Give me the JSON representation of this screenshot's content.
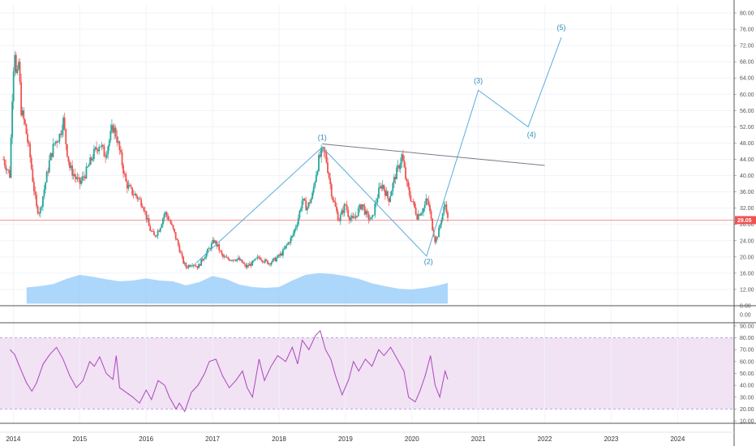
{
  "chart_data": [
    {
      "type": "candlestick",
      "title": "",
      "price_axis": {
        "ticks": [
          8,
          12,
          16,
          20,
          24,
          28,
          32,
          36,
          40,
          44,
          48,
          52,
          56,
          60,
          64,
          68,
          72,
          76,
          80
        ],
        "tick_labels": [
          "8.00",
          "12.00",
          "16.00",
          "20.00",
          "24.00",
          "28.00",
          "32.00",
          "36.00",
          "40.00",
          "44.00",
          "48.00",
          "52.00",
          "56.00",
          "60.00",
          "64.00",
          "68.00",
          "72.00",
          "76.00",
          "80.00"
        ],
        "range": [
          8,
          82
        ]
      },
      "current_price": {
        "value": 29.05,
        "label": "29.05",
        "color": "#ef5350"
      },
      "time_axis": {
        "labels": [
          "2014",
          "2015",
          "2016",
          "2017",
          "2018",
          "2019",
          "2020",
          "2021",
          "2022",
          "2023",
          "2024"
        ],
        "range": [
          2013.8,
          2024.85
        ]
      },
      "colors": {
        "up": "#26a69a",
        "down": "#ef5350",
        "volume": "#90caf9",
        "projection": "#5aaed8",
        "trendline": "#787b86"
      },
      "price_path": [
        [
          2013.85,
          44
        ],
        [
          2013.95,
          40
        ],
        [
          2013.98,
          58
        ],
        [
          2014.0,
          66
        ],
        [
          2014.02,
          72
        ],
        [
          2014.05,
          62
        ],
        [
          2014.08,
          68
        ],
        [
          2014.12,
          56
        ],
        [
          2014.18,
          52
        ],
        [
          2014.25,
          45
        ],
        [
          2014.3,
          38
        ],
        [
          2014.35,
          32
        ],
        [
          2014.4,
          31
        ],
        [
          2014.48,
          38
        ],
        [
          2014.55,
          44
        ],
        [
          2014.62,
          48
        ],
        [
          2014.7,
          50
        ],
        [
          2014.75,
          54
        ],
        [
          2014.8,
          47
        ],
        [
          2014.85,
          42
        ],
        [
          2014.92,
          40
        ],
        [
          2015.0,
          38
        ],
        [
          2015.1,
          41
        ],
        [
          2015.2,
          45
        ],
        [
          2015.3,
          48
        ],
        [
          2015.38,
          45
        ],
        [
          2015.45,
          49
        ],
        [
          2015.5,
          52
        ],
        [
          2015.55,
          50
        ],
        [
          2015.6,
          46
        ],
        [
          2015.65,
          42
        ],
        [
          2015.7,
          38
        ],
        [
          2015.78,
          36
        ],
        [
          2015.85,
          35
        ],
        [
          2015.95,
          33
        ],
        [
          2016.0,
          30
        ],
        [
          2016.05,
          27
        ],
        [
          2016.12,
          25
        ],
        [
          2016.2,
          27
        ],
        [
          2016.28,
          31
        ],
        [
          2016.35,
          29
        ],
        [
          2016.42,
          26
        ],
        [
          2016.5,
          22
        ],
        [
          2016.55,
          19
        ],
        [
          2016.6,
          17.5
        ],
        [
          2016.7,
          18.5
        ],
        [
          2016.78,
          17.5
        ],
        [
          2016.85,
          19.5
        ],
        [
          2016.95,
          22
        ],
        [
          2017.02,
          24
        ],
        [
          2017.08,
          22.5
        ],
        [
          2017.15,
          20
        ],
        [
          2017.22,
          19.5
        ],
        [
          2017.3,
          19.5
        ],
        [
          2017.38,
          19.5
        ],
        [
          2017.45,
          18.5
        ],
        [
          2017.5,
          17.5
        ],
        [
          2017.6,
          18.5
        ],
        [
          2017.7,
          20
        ],
        [
          2017.78,
          19
        ],
        [
          2017.85,
          18.5
        ],
        [
          2017.95,
          19.5
        ],
        [
          2018.05,
          21
        ],
        [
          2018.12,
          23
        ],
        [
          2018.2,
          25
        ],
        [
          2018.28,
          29
        ],
        [
          2018.35,
          34
        ],
        [
          2018.42,
          32
        ],
        [
          2018.5,
          35
        ],
        [
          2018.55,
          40
        ],
        [
          2018.6,
          44
        ],
        [
          2018.65,
          46
        ],
        [
          2018.7,
          45
        ],
        [
          2018.75,
          40
        ],
        [
          2018.8,
          35
        ],
        [
          2018.85,
          32
        ],
        [
          2018.9,
          29
        ],
        [
          2018.95,
          31
        ],
        [
          2019.0,
          33
        ],
        [
          2019.05,
          30
        ],
        [
          2019.12,
          29
        ],
        [
          2019.18,
          31
        ],
        [
          2019.25,
          33
        ],
        [
          2019.32,
          30
        ],
        [
          2019.4,
          29
        ],
        [
          2019.45,
          33
        ],
        [
          2019.5,
          36
        ],
        [
          2019.55,
          38
        ],
        [
          2019.6,
          36
        ],
        [
          2019.65,
          34
        ],
        [
          2019.7,
          37
        ],
        [
          2019.75,
          40
        ],
        [
          2019.8,
          42
        ],
        [
          2019.85,
          45
        ],
        [
          2019.88,
          42
        ],
        [
          2019.92,
          38
        ],
        [
          2019.97,
          35
        ],
        [
          2020.02,
          33
        ],
        [
          2020.08,
          30
        ],
        [
          2020.12,
          31
        ],
        [
          2020.18,
          32
        ],
        [
          2020.22,
          34
        ],
        [
          2020.25,
          33
        ],
        [
          2020.3,
          28
        ],
        [
          2020.35,
          24
        ],
        [
          2020.4,
          26
        ],
        [
          2020.45,
          30
        ],
        [
          2020.5,
          33
        ],
        [
          2020.52,
          32
        ],
        [
          2020.54,
          29.05
        ]
      ],
      "wave_labels": [
        {
          "text": "(1)",
          "x": 2018.65,
          "y": 48.8
        },
        {
          "text": "(2)",
          "x": 2020.25,
          "y": 18.3
        },
        {
          "text": "(3)",
          "x": 2021.0,
          "y": 62.8
        },
        {
          "text": "(4)",
          "x": 2021.8,
          "y": 49.5
        },
        {
          "text": "(5)",
          "x": 2022.25,
          "y": 75.8
        }
      ],
      "wave_path": [
        [
          2016.75,
          18.5
        ],
        [
          2018.65,
          47
        ],
        [
          2020.22,
          20.2
        ],
        [
          2021.0,
          61
        ],
        [
          2021.75,
          52
        ],
        [
          2022.25,
          74
        ]
      ],
      "trendline": [
        [
          2018.65,
          47.8
        ],
        [
          2022.0,
          42.5
        ]
      ],
      "volume": [
        [
          2014.2,
          12.5
        ],
        [
          2014.4,
          12.8
        ],
        [
          2014.6,
          13.3
        ],
        [
          2014.8,
          14.6
        ],
        [
          2015.0,
          15.6
        ],
        [
          2015.2,
          15.1
        ],
        [
          2015.4,
          14.5
        ],
        [
          2015.6,
          14.0
        ],
        [
          2015.8,
          14.2
        ],
        [
          2016.0,
          14.7
        ],
        [
          2016.2,
          14.2
        ],
        [
          2016.4,
          14.0
        ],
        [
          2016.6,
          13.0
        ],
        [
          2016.8,
          13.8
        ],
        [
          2017.0,
          15.3
        ],
        [
          2017.2,
          14.6
        ],
        [
          2017.4,
          13.2
        ],
        [
          2017.6,
          12.6
        ],
        [
          2017.8,
          12.4
        ],
        [
          2018.0,
          12.6
        ],
        [
          2018.2,
          14.2
        ],
        [
          2018.4,
          15.6
        ],
        [
          2018.6,
          16.0
        ],
        [
          2018.8,
          15.8
        ],
        [
          2019.0,
          15.3
        ],
        [
          2019.2,
          14.6
        ],
        [
          2019.4,
          13.5
        ],
        [
          2019.6,
          12.8
        ],
        [
          2019.8,
          12.2
        ],
        [
          2020.0,
          12.0
        ],
        [
          2020.2,
          12.4
        ],
        [
          2020.4,
          13.0
        ],
        [
          2020.54,
          13.6
        ]
      ]
    },
    {
      "type": "line",
      "title": "",
      "y_axis": {
        "ticks": [
          0
        ],
        "tick_labels": [
          "0.00"
        ],
        "range": [
          -1,
          1
        ]
      },
      "series": []
    },
    {
      "type": "line",
      "title": "",
      "y_axis": {
        "ticks": [
          10,
          20,
          30,
          40,
          50,
          60,
          70,
          80,
          90
        ],
        "tick_labels": [
          "10.00",
          "20.00",
          "30.00",
          "40.00",
          "50.00",
          "60.00",
          "70.00",
          "80.00",
          "90.00"
        ],
        "range": [
          8,
          92
        ]
      },
      "band": [
        20,
        80
      ],
      "band_color": "#e1bee7",
      "line_color": "#ab47bc",
      "series": [
        {
          "values": [
            [
              2013.95,
              70
            ],
            [
              2014.02,
              66
            ],
            [
              2014.1,
              55
            ],
            [
              2014.2,
              42
            ],
            [
              2014.28,
              35
            ],
            [
              2014.35,
              42
            ],
            [
              2014.45,
              58
            ],
            [
              2014.55,
              66
            ],
            [
              2014.65,
              72
            ],
            [
              2014.75,
              62
            ],
            [
              2014.85,
              48
            ],
            [
              2014.95,
              38
            ],
            [
              2015.05,
              44
            ],
            [
              2015.15,
              60
            ],
            [
              2015.22,
              56
            ],
            [
              2015.3,
              64
            ],
            [
              2015.4,
              50
            ],
            [
              2015.5,
              45
            ],
            [
              2015.55,
              65
            ],
            [
              2015.6,
              38
            ],
            [
              2015.7,
              34
            ],
            [
              2015.8,
              30
            ],
            [
              2015.9,
              25
            ],
            [
              2016.0,
              36
            ],
            [
              2016.08,
              28
            ],
            [
              2016.18,
              44
            ],
            [
              2016.28,
              40
            ],
            [
              2016.35,
              30
            ],
            [
              2016.45,
              20
            ],
            [
              2016.5,
              25
            ],
            [
              2016.58,
              18
            ],
            [
              2016.68,
              34
            ],
            [
              2016.78,
              40
            ],
            [
              2016.88,
              50
            ],
            [
              2016.95,
              60
            ],
            [
              2017.05,
              62
            ],
            [
              2017.15,
              48
            ],
            [
              2017.25,
              38
            ],
            [
              2017.35,
              44
            ],
            [
              2017.45,
              52
            ],
            [
              2017.52,
              38
            ],
            [
              2017.6,
              30
            ],
            [
              2017.7,
              62
            ],
            [
              2017.78,
              44
            ],
            [
              2017.88,
              56
            ],
            [
              2017.98,
              65
            ],
            [
              2018.1,
              60
            ],
            [
              2018.2,
              72
            ],
            [
              2018.28,
              58
            ],
            [
              2018.35,
              78
            ],
            [
              2018.45,
              70
            ],
            [
              2018.55,
              82
            ],
            [
              2018.62,
              86
            ],
            [
              2018.7,
              70
            ],
            [
              2018.78,
              62
            ],
            [
              2018.85,
              48
            ],
            [
              2018.95,
              32
            ],
            [
              2019.05,
              45
            ],
            [
              2019.12,
              60
            ],
            [
              2019.2,
              52
            ],
            [
              2019.3,
              62
            ],
            [
              2019.4,
              56
            ],
            [
              2019.5,
              70
            ],
            [
              2019.58,
              65
            ],
            [
              2019.68,
              72
            ],
            [
              2019.78,
              62
            ],
            [
              2019.88,
              52
            ],
            [
              2019.95,
              30
            ],
            [
              2020.05,
              26
            ],
            [
              2020.12,
              35
            ],
            [
              2020.2,
              48
            ],
            [
              2020.28,
              65
            ],
            [
              2020.35,
              40
            ],
            [
              2020.42,
              30
            ],
            [
              2020.5,
              52
            ],
            [
              2020.54,
              45
            ]
          ]
        }
      ]
    }
  ]
}
